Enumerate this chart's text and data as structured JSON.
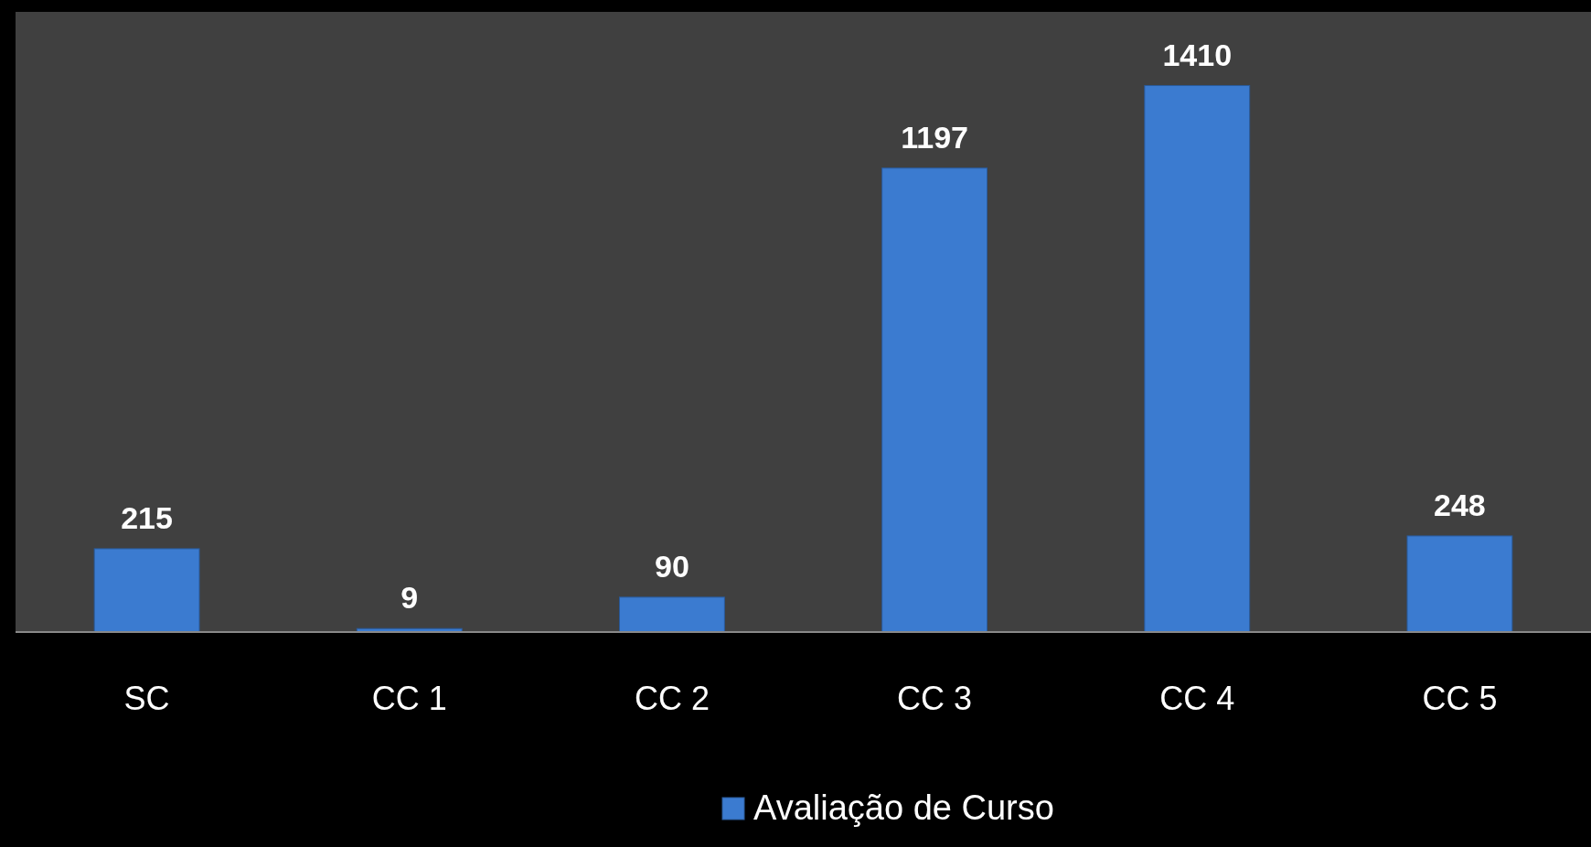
{
  "chart_data": {
    "type": "bar",
    "categories": [
      "SC",
      "CC 1",
      "CC 2",
      "CC 3",
      "CC 4",
      "CC 5"
    ],
    "series": [
      {
        "name": "Avaliação de Curso",
        "color": "#3b7bd0",
        "values": [
          215,
          9,
          90,
          1197,
          1410,
          248
        ]
      }
    ],
    "ylim": [
      0,
      1600
    ],
    "data_labels": true,
    "legend": "bottom"
  }
}
